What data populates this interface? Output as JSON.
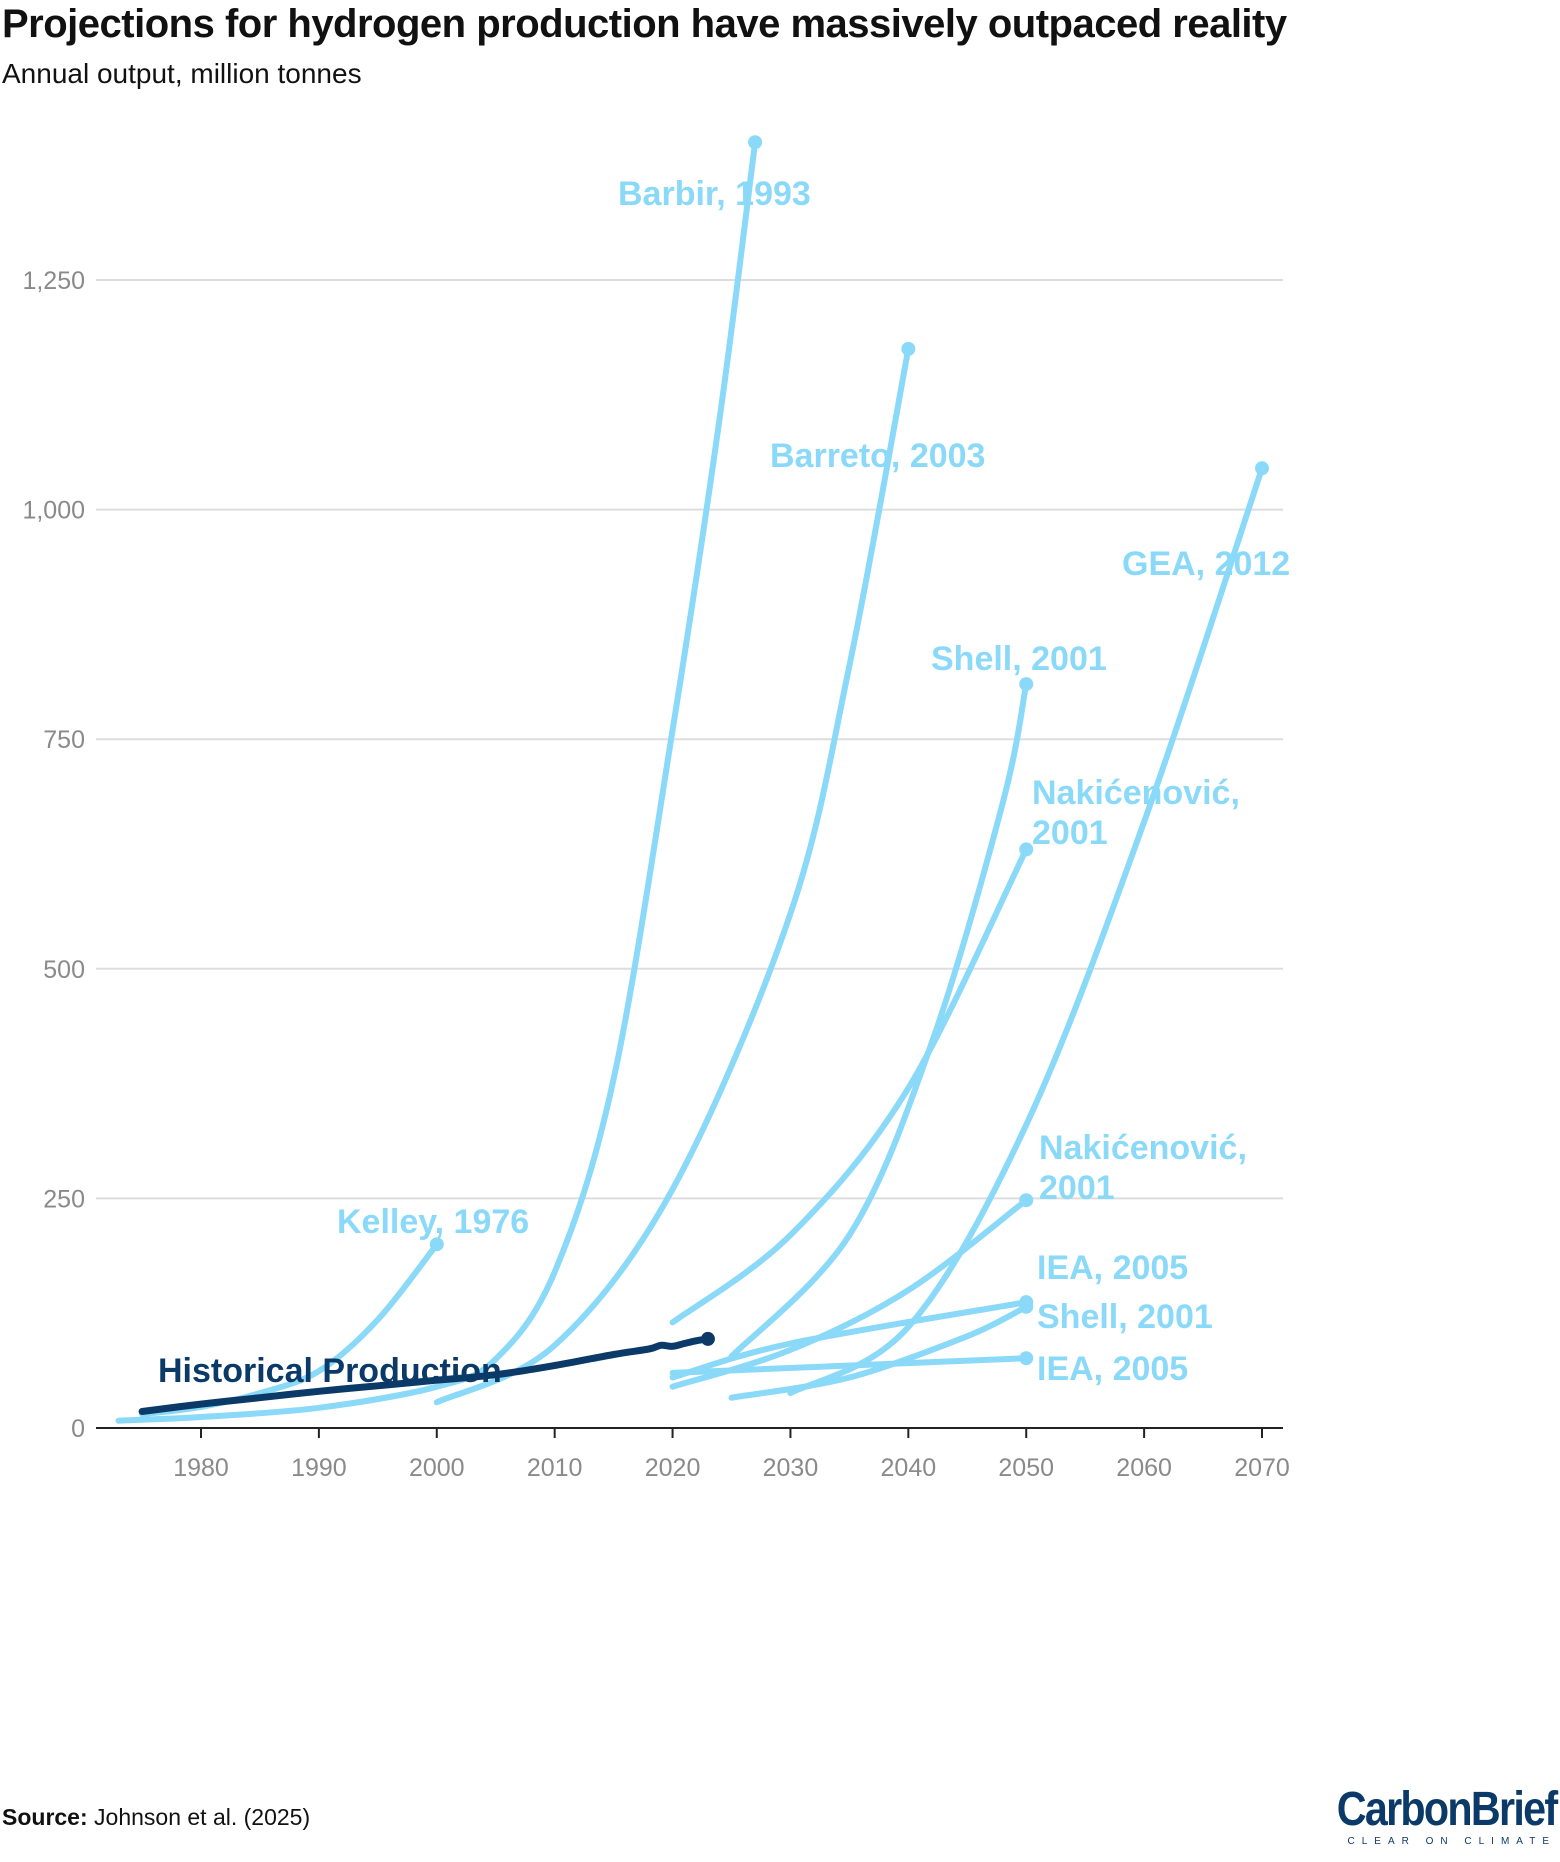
{
  "header": {
    "title": "Projections for hydrogen production have massively outpaced reality",
    "subtitle": "Annual output, million tonnes"
  },
  "footer": {
    "source_label": "Source:",
    "source_text": "Johnson et al. (2025)",
    "logo_text": "CarbonBrief",
    "logo_tagline": "CLEAR ON CLIMATE"
  },
  "colors": {
    "projection": "#8ad9f8",
    "historical": "#0b3a68",
    "grid": "#dddddd",
    "axis_text": "#8a8a8a"
  },
  "chart_data": {
    "type": "line",
    "title": "Projections for hydrogen production have massively outpaced reality",
    "subtitle": "Annual output, million tonnes",
    "xlabel": "",
    "ylabel": "",
    "xlim": [
      1971,
      2072
    ],
    "ylim": [
      0,
      1420
    ],
    "x_ticks": [
      1980,
      1990,
      2000,
      2010,
      2020,
      2030,
      2040,
      2050,
      2060,
      2070
    ],
    "x_tick_labels": [
      "1980",
      "1990",
      "2000",
      "2010",
      "2020",
      "2030",
      "2040",
      "2050",
      "2060",
      "2070"
    ],
    "y_ticks": [
      0,
      250,
      500,
      750,
      1000,
      1250
    ],
    "y_tick_labels": [
      "0",
      "250",
      "500",
      "750",
      "1,000",
      "1,250"
    ],
    "grid": "horizontal",
    "series": [
      {
        "name": "Kelley, 1976",
        "label": "Kelley, 1976",
        "kind": "projection",
        "x": [
          1975,
          1980,
          1985,
          1990,
          1995,
          2000
        ],
        "y": [
          15,
          23,
          38,
          62,
          118,
          200
        ]
      },
      {
        "name": "Barbir, 1993",
        "label": "Barbir, 1993",
        "kind": "projection",
        "x": [
          1973,
          1980,
          1990,
          2000,
          2005,
          2010,
          2015,
          2020,
          2024,
          2027
        ],
        "y": [
          8,
          12,
          22,
          45,
          75,
          170,
          380,
          760,
          1100,
          1400
        ]
      },
      {
        "name": "Barreto, 2003",
        "label": "Barreto, 2003",
        "kind": "projection",
        "x": [
          2000,
          2010,
          2020,
          2030,
          2035,
          2040
        ],
        "y": [
          28,
          90,
          260,
          560,
          830,
          1175
        ]
      },
      {
        "name": "GEA, 2012",
        "label": "GEA, 2012",
        "kind": "projection",
        "x": [
          2030,
          2040,
          2050,
          2060,
          2070
        ],
        "y": [
          38,
          110,
          330,
          660,
          1045
        ]
      },
      {
        "name": "Shell, 2001",
        "label": "Shell, 2001",
        "kind": "projection",
        "x": [
          2025,
          2035,
          2042,
          2048,
          2050
        ],
        "y": [
          78,
          210,
          420,
          680,
          810
        ]
      },
      {
        "name": "Nakićenović, 2001",
        "label": "Nakićenović,\n2001",
        "kind": "projection",
        "x": [
          2020,
          2030,
          2040,
          2050
        ],
        "y": [
          115,
          210,
          370,
          630
        ]
      },
      {
        "name": "Nakićenović, 2001 (lower)",
        "label": "Nakićenović,\n2001",
        "kind": "projection",
        "x": [
          2020,
          2030,
          2040,
          2050
        ],
        "y": [
          45,
          85,
          150,
          248
        ]
      },
      {
        "name": "IEA, 2005",
        "label": "IEA, 2005",
        "kind": "projection",
        "x": [
          2020,
          2030,
          2050
        ],
        "y": [
          55,
          92,
          137
        ]
      },
      {
        "name": "Shell, 2001 (lower)",
        "label": "Shell, 2001",
        "kind": "projection",
        "x": [
          2025,
          2035,
          2045,
          2050
        ],
        "y": [
          33,
          55,
          100,
          132
        ]
      },
      {
        "name": "IEA, 2005 (lower)",
        "label": "IEA, 2005",
        "kind": "projection",
        "x": [
          2020,
          2050
        ],
        "y": [
          60,
          76
        ]
      },
      {
        "name": "Historical Production",
        "label": "Historical Production",
        "kind": "historical",
        "x": [
          1975,
          1980,
          1985,
          1990,
          1995,
          2000,
          2005,
          2010,
          2015,
          2018,
          2019,
          2020,
          2021,
          2022,
          2023
        ],
        "y": [
          18,
          26,
          33,
          40,
          46,
          52,
          58,
          68,
          80,
          86,
          90,
          89,
          92,
          95,
          97
        ]
      }
    ]
  }
}
